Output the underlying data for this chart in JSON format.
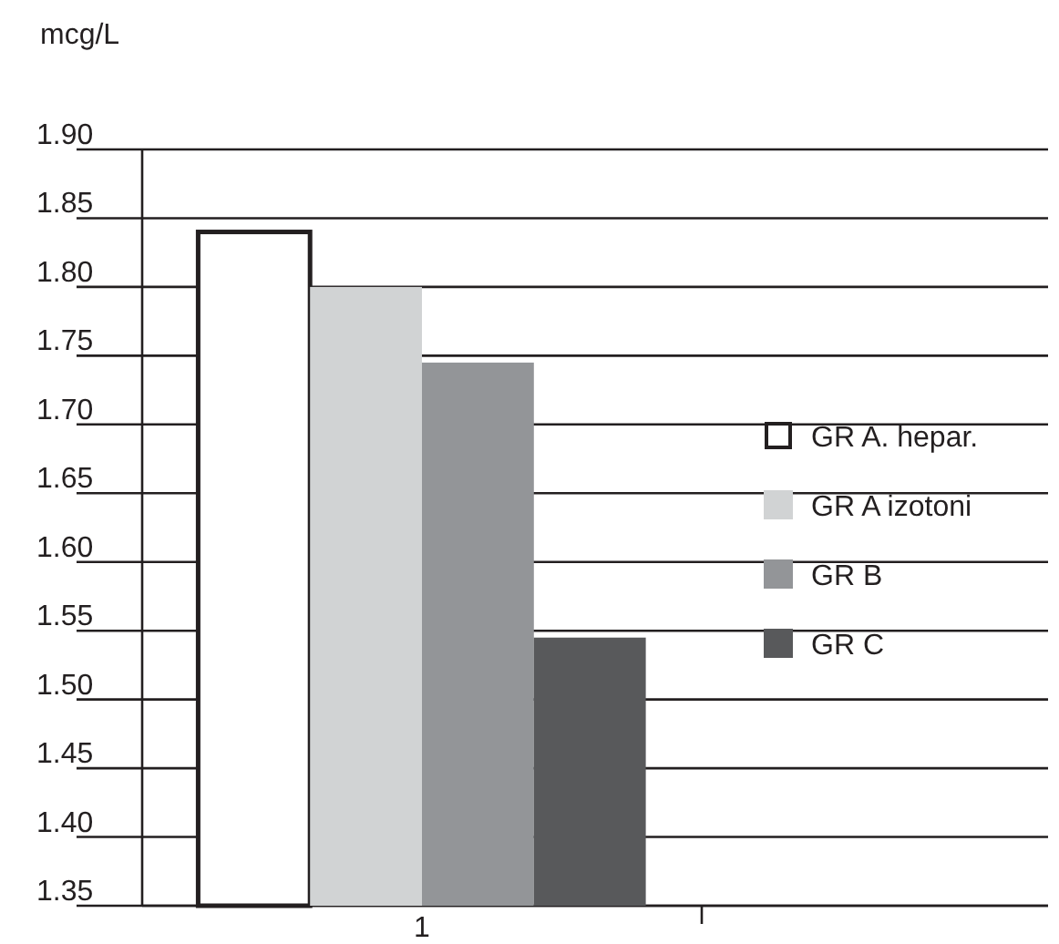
{
  "chart_data": {
    "type": "bar",
    "ylabel": "mcg/L",
    "categories": [
      "1"
    ],
    "series": [
      {
        "name": "GR A. hepar.",
        "color": "#ffffff",
        "values": [
          1.84
        ]
      },
      {
        "name": "GR A izotoni",
        "color": "#d1d3d4",
        "values": [
          1.8
        ]
      },
      {
        "name": "GR B",
        "color": "#939598",
        "values": [
          1.745
        ]
      },
      {
        "name": "GR C",
        "color": "#58595b",
        "values": [
          1.545
        ]
      }
    ],
    "ylim": [
      1.35,
      1.9
    ],
    "yticks": [
      {
        "value": 1.35,
        "label": "1.35"
      },
      {
        "value": 1.4,
        "label": "1.40"
      },
      {
        "value": 1.45,
        "label": "1.45"
      },
      {
        "value": 1.5,
        "label": "1.50"
      },
      {
        "value": 1.55,
        "label": "1.55"
      },
      {
        "value": 1.6,
        "label": "1.60"
      },
      {
        "value": 1.65,
        "label": "1.65"
      },
      {
        "value": 1.7,
        "label": "1.70"
      },
      {
        "value": 1.75,
        "label": "1.75"
      },
      {
        "value": 1.8,
        "label": "1.80"
      },
      {
        "value": 1.85,
        "label": "1.85"
      },
      {
        "value": 1.9,
        "label": "1.90"
      }
    ],
    "grid": "y",
    "legend": "right"
  }
}
